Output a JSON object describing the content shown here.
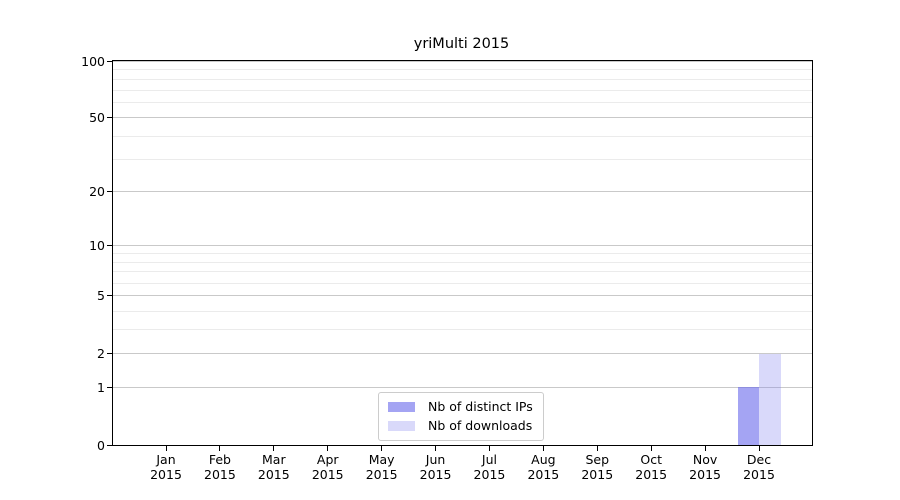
{
  "title": "yriMulti 2015",
  "chart_data": {
    "type": "bar",
    "title": "yriMulti 2015",
    "categories": [
      {
        "month": "Jan",
        "year": "2015"
      },
      {
        "month": "Feb",
        "year": "2015"
      },
      {
        "month": "Mar",
        "year": "2015"
      },
      {
        "month": "Apr",
        "year": "2015"
      },
      {
        "month": "May",
        "year": "2015"
      },
      {
        "month": "Jun",
        "year": "2015"
      },
      {
        "month": "Jul",
        "year": "2015"
      },
      {
        "month": "Aug",
        "year": "2015"
      },
      {
        "month": "Sep",
        "year": "2015"
      },
      {
        "month": "Oct",
        "year": "2015"
      },
      {
        "month": "Nov",
        "year": "2015"
      },
      {
        "month": "Dec",
        "year": "2015"
      }
    ],
    "series": [
      {
        "name": "Nb of distinct IPs",
        "color": "#a8a8f3",
        "fill": "rgba(104,104,235,0.6)",
        "values": [
          0,
          0,
          0,
          0,
          0,
          0,
          0,
          0,
          0,
          0,
          0,
          1
        ]
      },
      {
        "name": "Nb of downloads",
        "color": "#dadafa",
        "fill": "rgba(130,130,238,0.3)",
        "values": [
          0,
          0,
          0,
          0,
          0,
          0,
          0,
          0,
          0,
          0,
          0,
          2
        ]
      }
    ],
    "yscale": "log1p",
    "ylim": [
      0,
      100
    ],
    "yticks": [
      0,
      1,
      2,
      5,
      10,
      20,
      50,
      100
    ],
    "minor_yticks": [
      3,
      4,
      6,
      7,
      8,
      9,
      30,
      40,
      60,
      70,
      80,
      90
    ],
    "grid": "horizontal",
    "legend_position": "lower-center"
  },
  "colors": {
    "major_grid": "#c9c9c9",
    "minor_grid": "#ebebeb",
    "axis": "#000000",
    "text": "#000000",
    "legend_border": "#cccccc"
  }
}
